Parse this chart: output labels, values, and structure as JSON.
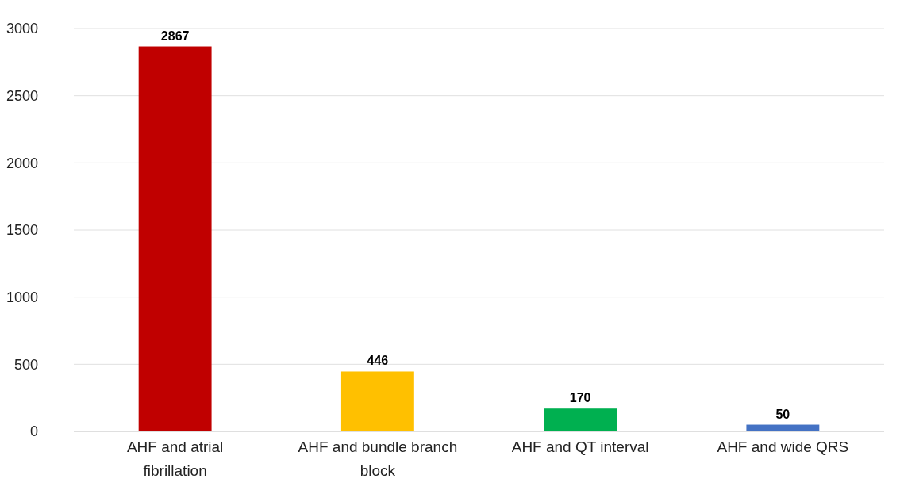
{
  "chart_data": {
    "type": "bar",
    "categories": [
      "AHF and atrial fibrillation",
      "AHF and bundle branch block",
      "AHF and QT interval",
      "AHF and wide QRS"
    ],
    "values": [
      2867,
      446,
      170,
      50
    ],
    "colors": [
      "#c00000",
      "#ffc000",
      "#00b050",
      "#4472c4"
    ],
    "ylim": [
      0,
      3000
    ],
    "yticks": [
      0,
      500,
      1000,
      1500,
      2000,
      2500,
      3000
    ],
    "grid": "y",
    "data_labels": true
  }
}
